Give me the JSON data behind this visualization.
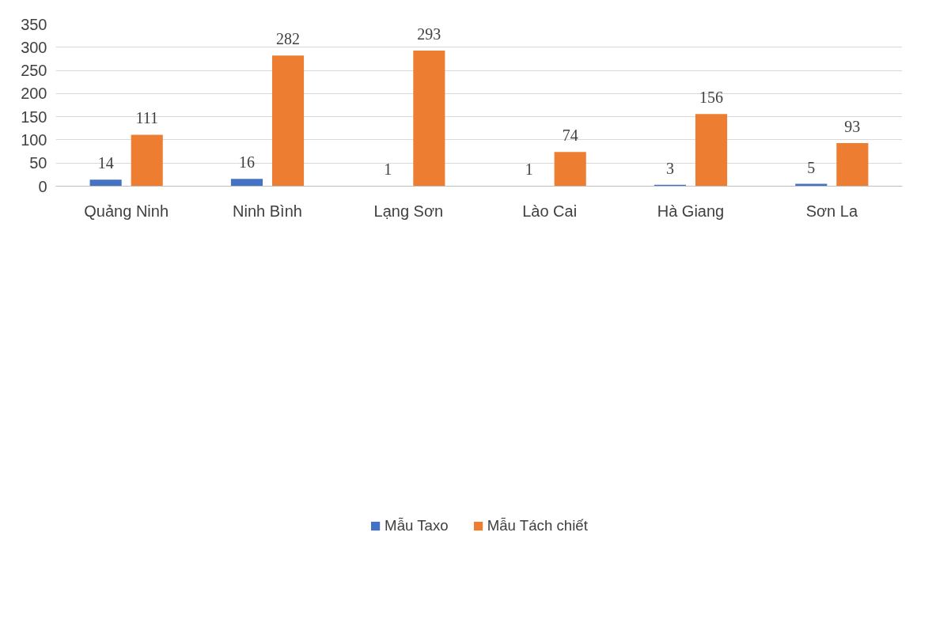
{
  "chart_data": {
    "type": "bar",
    "categories": [
      "Quảng Ninh",
      "Ninh Bình",
      "Lạng Sơn",
      "Lào Cai",
      "Hà Giang",
      "Sơn La"
    ],
    "series": [
      {
        "name": "Mẫu Taxo",
        "color": "#4472c4",
        "values": [
          14,
          16,
          1,
          1,
          3,
          5
        ]
      },
      {
        "name": "Mẫu Tách chiết",
        "color": "#ed7d31",
        "values": [
          111,
          282,
          293,
          74,
          156,
          93
        ]
      }
    ],
    "ylim": [
      0,
      350
    ],
    "yticks": [
      0,
      50,
      100,
      150,
      200,
      250,
      300,
      350
    ],
    "grid": "y",
    "legend": "bottom",
    "data_labels": true
  }
}
